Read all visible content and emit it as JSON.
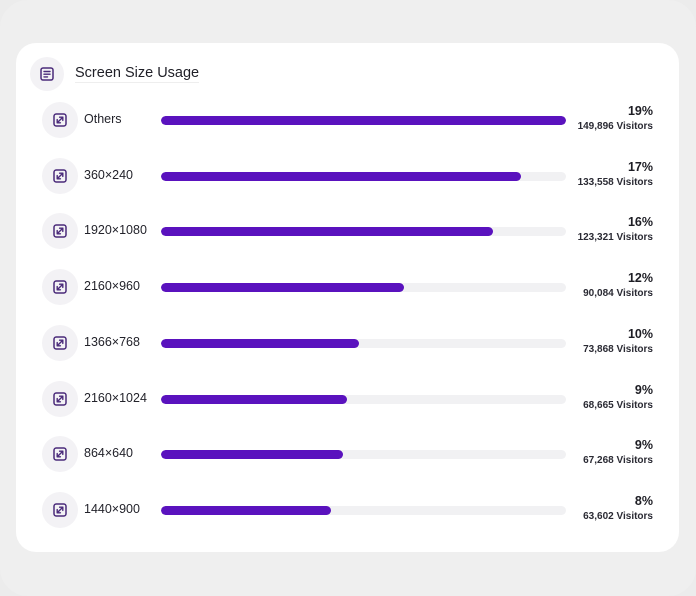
{
  "widget": {
    "title": "Screen Size Usage",
    "header_icon": "document-list-icon",
    "accent_color": "#5a12be"
  },
  "rows": [
    {
      "label": "Others",
      "percent": "19%",
      "visitors": "149,896 Visitors",
      "fill": 1.0
    },
    {
      "label": "360×240",
      "percent": "17%",
      "visitors": "133,558 Visitors",
      "fill": 0.89
    },
    {
      "label": "1920×1080",
      "percent": "16%",
      "visitors": "123,321 Visitors",
      "fill": 0.82
    },
    {
      "label": "2160×960",
      "percent": "12%",
      "visitors": "90,084 Visitors",
      "fill": 0.6
    },
    {
      "label": "1366×768",
      "percent": "10%",
      "visitors": "73,868 Visitors",
      "fill": 0.49
    },
    {
      "label": "2160×1024",
      "percent": "9%",
      "visitors": "68,665 Visitors",
      "fill": 0.46
    },
    {
      "label": "864×640",
      "percent": "9%",
      "visitors": "67,268 Visitors",
      "fill": 0.45
    },
    {
      "label": "1440×900",
      "percent": "8%",
      "visitors": "63,602 Visitors",
      "fill": 0.42
    }
  ],
  "row_icon": "resize-diagonal-icon"
}
